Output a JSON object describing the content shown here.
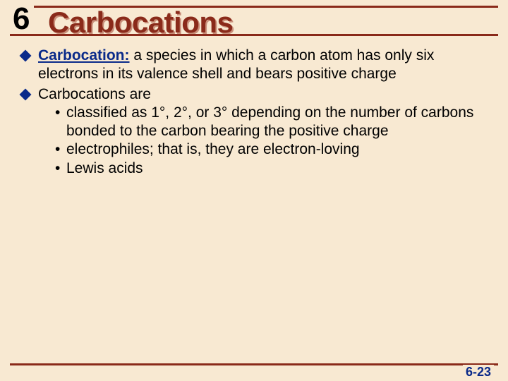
{
  "colors": {
    "background": "#f8e9d2",
    "rule": "#8a2a1a",
    "chapter_num": "#000000",
    "title": "#8a2a1a",
    "title_shadow": "#c98f7a",
    "diamond": "#0a2a8a",
    "term": "#0a2a8a",
    "body_text": "#000000",
    "page_num": "#0a2a8a"
  },
  "typography": {
    "title_fontsize": 42,
    "body_fontsize": 21,
    "chapter_fontsize": 44,
    "page_num_fontsize": 18
  },
  "chapter_number": "6",
  "title": "Carbocations",
  "bullets": [
    {
      "term": "Carbocation:",
      "text": " a species in which a carbon atom has only six electrons in its valence shell and bears positive charge",
      "sub": []
    },
    {
      "term": "",
      "text": "Carbocations are",
      "sub": [
        "classified as 1°, 2°, or 3° depending on the number of carbons bonded to the carbon bearing the positive charge",
        "electrophiles; that is, they are electron-loving",
        "Lewis acids"
      ]
    }
  ],
  "page_number": "6-23"
}
